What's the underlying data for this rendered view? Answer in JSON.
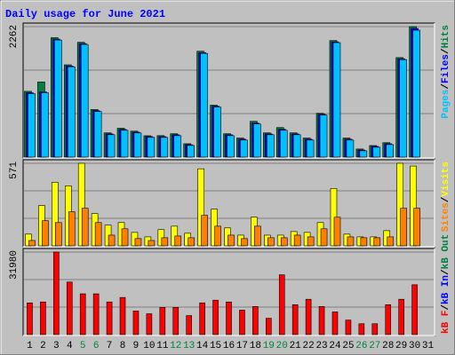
{
  "title": "Daily usage for June 2021",
  "separator": "/",
  "chart_data": [
    {
      "type": "bar",
      "ylim": [
        0,
        2262
      ],
      "yticks": [
        2262
      ],
      "grid": true,
      "series": [
        {
          "name": "Hits",
          "color": "#008040",
          "values": [
            1140,
            1302,
            2070,
            1600,
            1990,
            825,
            420,
            500,
            450,
            370,
            372,
            405,
            232,
            1835,
            900,
            405,
            330,
            620,
            420,
            512,
            420,
            330,
            760,
            2020,
            330,
            140,
            200,
            250,
            1725,
            2262,
            0
          ]
        },
        {
          "name": "Files",
          "color": "#0000FF",
          "values": [
            1115,
            1130,
            2045,
            1580,
            1968,
            805,
            402,
            480,
            432,
            355,
            355,
            387,
            215,
            1812,
            882,
            387,
            310,
            590,
            402,
            482,
            402,
            310,
            742,
            1999,
            310,
            122,
            185,
            232,
            1705,
            2230,
            0
          ]
        },
        {
          "name": "Pages",
          "color": "#00C0FF",
          "values": [
            1100,
            1116,
            2030,
            1566,
            1953,
            790,
            388,
            465,
            419,
            341,
            341,
            372,
            202,
            1798,
            868,
            372,
            295,
            574,
            388,
            465,
            388,
            295,
            729,
            1984,
            295,
            109,
            171,
            217,
            1690,
            2200,
            0
          ]
        }
      ]
    },
    {
      "type": "bar",
      "ylim": [
        0,
        571
      ],
      "yticks": [
        571
      ],
      "grid": true,
      "series": [
        {
          "name": "Visits",
          "color": "#FFFF00",
          "values": [
            81,
            279,
            440,
            415,
            571,
            223,
            143,
            161,
            93,
            62,
            112,
            136,
            87,
            533,
            254,
            124,
            74,
            198,
            74,
            74,
            99,
            93,
            161,
            397,
            81,
            62,
            62,
            105,
            571,
            552,
            0
          ]
        },
        {
          "name": "Sites",
          "color": "#FF8000",
          "values": [
            37,
            174,
            161,
            236,
            260,
            161,
            74,
            118,
            50,
            37,
            56,
            68,
            56,
            211,
            136,
            74,
            50,
            136,
            56,
            56,
            74,
            62,
            118,
            198,
            62,
            56,
            56,
            62,
            260,
            260,
            0
          ]
        }
      ]
    },
    {
      "type": "bar",
      "ylim": [
        0,
        31980
      ],
      "yticks": [
        31980
      ],
      "grid": true,
      "categories": [
        "1",
        "2",
        "3",
        "4",
        "5",
        "6",
        "7",
        "8",
        "9",
        "10",
        "11",
        "12",
        "13",
        "14",
        "15",
        "16",
        "17",
        "18",
        "19",
        "20",
        "21",
        "22",
        "23",
        "24",
        "25",
        "26",
        "27",
        "28",
        "29",
        "30",
        "31"
      ],
      "category_colors": [
        "#000000",
        "#000000",
        "#000000",
        "#000000",
        "#008040",
        "#008040",
        "#000000",
        "#000000",
        "#000000",
        "#000000",
        "#000000",
        "#008040",
        "#008040",
        "#000000",
        "#000000",
        "#000000",
        "#000000",
        "#000000",
        "#008040",
        "#008040",
        "#000000",
        "#000000",
        "#000000",
        "#000000",
        "#000000",
        "#008040",
        "#008040",
        "#000000",
        "#000000",
        "#000000",
        "#000000"
      ],
      "series": [
        {
          "name": "kB F",
          "color": "#FF0000",
          "values": [
            12290,
            12640,
            31980,
            20360,
            15800,
            15800,
            12640,
            14390,
            9130,
            8070,
            10530,
            10530,
            7370,
            12290,
            13340,
            12640,
            9480,
            10880,
            6320,
            23170,
            11580,
            13690,
            10880,
            8780,
            5620,
            4210,
            4210,
            11580,
            13690,
            19310,
            0
          ]
        }
      ],
      "legend_extra": [
        {
          "name": "kB In",
          "color": "#0000FF"
        },
        {
          "name": "kB Out",
          "color": "#008040"
        }
      ]
    }
  ]
}
